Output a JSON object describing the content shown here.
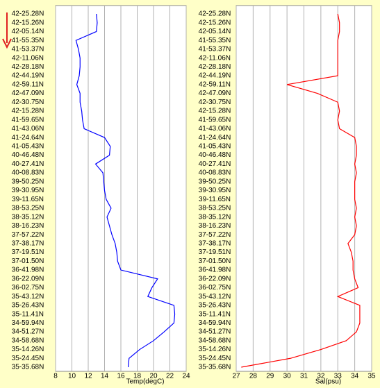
{
  "chart_data": [
    {
      "type": "line",
      "orientation": "vertical",
      "x_label": "Temp(degC)",
      "categories": [
        "42-25.28N",
        "42-15.26N",
        "42-05.14N",
        "41-55.35N",
        "41-53.37N",
        "42-11.06N",
        "42-28.18N",
        "42-44.19N",
        "42-59.11N",
        "42-47.09N",
        "42-30.75N",
        "42-15.28N",
        "41-59.65N",
        "41-43.06N",
        "41-24.64N",
        "41-05.43N",
        "40-46.48N",
        "40-27.41N",
        "40-08.83N",
        "39-50.25N",
        "39-30.95N",
        "39-11.65N",
        "38-53.25N",
        "38-35.12N",
        "38-16.23N",
        "37-57.22N",
        "37-38.17N",
        "37-19.51N",
        "37-01.50N",
        "36-41.98N",
        "36-22.09N",
        "36-02.75N",
        "35-43.12N",
        "35-26.43N",
        "35-11.41N",
        "34-59.94N",
        "34-51.27N",
        "34-58.68N",
        "35-14.26N",
        "35-24.45N",
        "35-35.68N"
      ],
      "series": [
        {
          "color": "#0000ff",
          "values": [
            13.0,
            13.1,
            13.0,
            10.5,
            10.8,
            11.0,
            11.0,
            10.9,
            10.6,
            11.0,
            11.0,
            11.2,
            11.3,
            11.5,
            14.0,
            14.7,
            14.6,
            12.9,
            13.8,
            13.9,
            14.0,
            14.2,
            14.8,
            14.3,
            14.6,
            14.9,
            15.3,
            15.5,
            15.6,
            16.0,
            20.5,
            19.8,
            19.3,
            22.5,
            22.6,
            22.5,
            21.3,
            20.0,
            18.3,
            17.0,
            16.9
          ]
        }
      ],
      "xlim": [
        8,
        24
      ],
      "xticks": [
        8,
        10,
        12,
        14,
        16,
        18,
        20,
        22,
        24
      ],
      "grid": true
    },
    {
      "type": "line",
      "orientation": "vertical",
      "x_label": "Sal(psu)",
      "categories": [
        "42-25.28N",
        "42-15.26N",
        "42-05.14N",
        "41-55.35N",
        "41-53.37N",
        "42-11.06N",
        "42-28.18N",
        "42-44.19N",
        "42-59.11N",
        "42-47.09N",
        "42-30.75N",
        "42-15.28N",
        "41-59.65N",
        "41-43.06N",
        "41-24.64N",
        "41-05.43N",
        "40-46.48N",
        "40-27.41N",
        "40-08.83N",
        "39-50.25N",
        "39-30.95N",
        "39-11.65N",
        "38-53.25N",
        "38-35.12N",
        "38-16.23N",
        "37-57.22N",
        "37-38.17N",
        "37-19.51N",
        "37-01.50N",
        "36-41.98N",
        "36-22.09N",
        "36-02.75N",
        "35-43.12N",
        "35-26.43N",
        "35-11.41N",
        "34-59.94N",
        "34-51.27N",
        "34-58.68N",
        "35-14.26N",
        "35-24.45N",
        "35-35.68N"
      ],
      "series": [
        {
          "color": "#ff0000",
          "values": [
            33.0,
            33.1,
            33.1,
            33.0,
            33.0,
            33.0,
            33.0,
            33.0,
            30.0,
            31.8,
            33.0,
            33.1,
            33.0,
            33.1,
            34.0,
            34.1,
            34.1,
            34.0,
            34.1,
            34.0,
            34.0,
            34.0,
            34.1,
            34.0,
            34.1,
            34.0,
            33.6,
            33.8,
            33.9,
            33.9,
            34.0,
            34.2,
            33.0,
            34.3,
            34.3,
            34.3,
            34.1,
            33.5,
            32.0,
            30.2,
            27.3
          ]
        }
      ],
      "xlim": [
        27,
        35
      ],
      "xticks": [
        27,
        28,
        29,
        30,
        31,
        32,
        33,
        34,
        35
      ],
      "grid": true
    }
  ]
}
